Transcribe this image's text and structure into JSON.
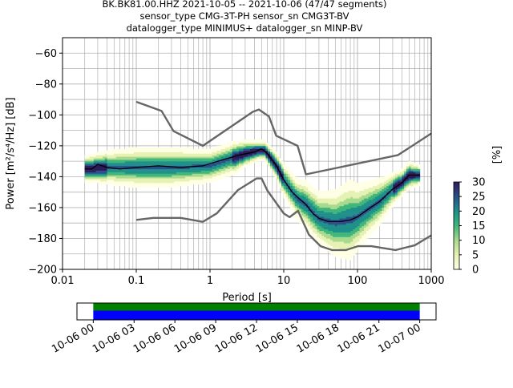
{
  "title_lines": [
    "BK.BK81.00.HHZ   2021-10-05 -- 2021-10-06  (47/47 segments)",
    "sensor_type CMG-3T-PH sensor_sn CMG3T-BV",
    "datalogger_type MINIMUS+ datalogger_sn MINP-BV"
  ],
  "colors": {
    "noise_model": "#666666",
    "mean": "#000000",
    "grid": "#b0b0b0",
    "coverage_top": "#008000",
    "coverage_bottom": "#0000ff",
    "colormap": [
      "#ffffe5",
      "#e6f2b3",
      "#a8d98e",
      "#3fb67a",
      "#1f8f8a",
      "#2b4f8a",
      "#2c1b59"
    ]
  },
  "chart_data": {
    "type": "heatmap",
    "title": "BK.BK81.00.HHZ   2021-10-05 -- 2021-10-06  (47/47 segments)",
    "xlabel": "Period [s]",
    "ylabel": "Power [m²/s⁴/Hz] [dB]",
    "xscale": "log",
    "xlim": [
      0.01,
      1000
    ],
    "ylim": [
      -200,
      -50
    ],
    "x_ticks": [
      "0.01",
      "0.1",
      "1",
      "10",
      "100",
      "1000"
    ],
    "y_ticks": [
      "−60",
      "−80",
      "−100",
      "−120",
      "−140",
      "−160",
      "−180",
      "−200"
    ],
    "y_tick_values": [
      -60,
      -80,
      -100,
      -120,
      -140,
      -160,
      -180,
      -200
    ],
    "grid": true,
    "colorbar": {
      "label": "[%]",
      "range": [
        0,
        30
      ],
      "ticks": [
        "0",
        "5",
        "10",
        "15",
        "20",
        "25",
        "30"
      ],
      "tick_values": [
        0,
        5,
        10,
        15,
        20,
        25,
        30
      ]
    },
    "series": [
      {
        "id": "nhnm",
        "x": [
          0.1,
          0.22,
          0.32,
          0.8,
          3.8,
          4.6,
          6.3,
          7.9,
          15.4,
          20,
          354.8,
          1000
        ],
        "y": [
          -91.5,
          -97.4,
          -110.5,
          -120,
          -98,
          -96.5,
          -101,
          -113.5,
          -120,
          -138.5,
          -126,
          -112
        ]
      },
      {
        "id": "nlnm",
        "x": [
          0.1,
          0.17,
          0.4,
          0.8,
          1.24,
          2.4,
          4.3,
          5.0,
          6.0,
          10.0,
          12.0,
          15.6,
          21.9,
          31.6,
          45,
          70,
          101,
          154,
          328,
          600,
          1000
        ],
        "y": [
          -168,
          -166.7,
          -166.7,
          -169.2,
          -163.7,
          -148.6,
          -141.1,
          -141.1,
          -149,
          -163.8,
          -166.2,
          -162.1,
          -177.5,
          -185,
          -187.5,
          -187.5,
          -185,
          -185,
          -187.5,
          -184.4,
          -178
        ]
      },
      {
        "id": "mean",
        "x": [
          0.02,
          0.025,
          0.03,
          0.04,
          0.06,
          0.1,
          0.2,
          0.4,
          0.8,
          1.5,
          2.5,
          4,
          5,
          6,
          8,
          10,
          13,
          16,
          20,
          25,
          30,
          40,
          60,
          80,
          100,
          150,
          200,
          300,
          400,
          500,
          700
        ],
        "y": [
          -135,
          -135,
          -132,
          -134,
          -135,
          -134,
          -133,
          -134,
          -133,
          -129,
          -126,
          -124,
          -122,
          -125,
          -133,
          -142,
          -150,
          -154,
          -158,
          -164,
          -167,
          -169,
          -169,
          -168,
          -166,
          -160,
          -156,
          -148,
          -144,
          -139,
          -139
        ]
      }
    ],
    "density_band": {
      "x": [
        0.02,
        0.04,
        0.1,
        0.3,
        1,
        2,
        3,
        4.5,
        5.5,
        8,
        10,
        15,
        20,
        30,
        50,
        80,
        100,
        150,
        200,
        300,
        400,
        500,
        700
      ],
      "mean": [
        -135,
        -134,
        -134,
        -134,
        -133,
        -128,
        -125,
        -123,
        -123,
        -133,
        -142,
        -154,
        -158,
        -167,
        -170,
        -168,
        -166,
        -160,
        -156,
        -148,
        -144,
        -139,
        -139
      ],
      "spread": [
        4,
        5,
        6,
        6,
        5,
        5,
        4,
        3,
        3,
        4,
        5,
        6,
        7,
        8,
        10,
        12,
        10,
        8,
        7,
        5,
        4,
        4,
        3
      ]
    }
  },
  "coverage": {
    "tick_labels": [
      "10-06 00",
      "10-06 03",
      "10-06 06",
      "10-06 09",
      "10-06 12",
      "10-06 15",
      "10-06 18",
      "10-06 21",
      "10-07 00"
    ],
    "tick_hours": [
      0,
      3,
      6,
      9,
      12,
      15,
      18,
      21,
      24
    ],
    "range_hours": [
      -1.2,
      25.2
    ],
    "data_hours": [
      0,
      24
    ]
  }
}
